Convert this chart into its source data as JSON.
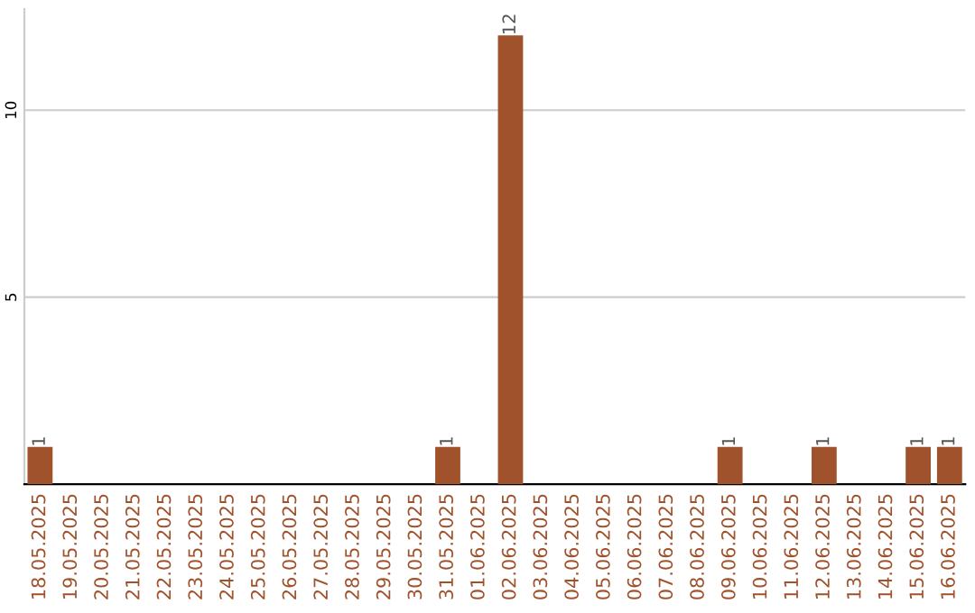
{
  "chart_data": {
    "type": "bar",
    "categories": [
      "18.05.2025",
      "19.05.2025",
      "20.05.2025",
      "21.05.2025",
      "22.05.2025",
      "23.05.2025",
      "24.05.2025",
      "25.05.2025",
      "26.05.2025",
      "27.05.2025",
      "28.05.2025",
      "29.05.2025",
      "30.05.2025",
      "31.05.2025",
      "01.06.2025",
      "02.06.2025",
      "03.06.2025",
      "04.06.2025",
      "05.06.2025",
      "06.06.2025",
      "07.06.2025",
      "08.06.2025",
      "09.06.2025",
      "10.06.2025",
      "11.06.2025",
      "12.06.2025",
      "13.06.2025",
      "14.06.2025",
      "15.06.2025",
      "16.06.2025"
    ],
    "values": [
      1,
      0,
      0,
      0,
      0,
      0,
      0,
      0,
      0,
      0,
      0,
      0,
      0,
      1,
      0,
      12,
      0,
      0,
      0,
      0,
      0,
      0,
      1,
      0,
      0,
      1,
      0,
      0,
      1,
      1
    ],
    "color": "#a0522d",
    "value_labels": [
      "1",
      null,
      null,
      null,
      null,
      null,
      null,
      null,
      null,
      null,
      null,
      null,
      null,
      "1",
      null,
      "12",
      null,
      null,
      null,
      null,
      null,
      null,
      "1",
      null,
      null,
      "1",
      null,
      null,
      "1",
      "1"
    ],
    "ylim": [
      0,
      12.7
    ],
    "yticks": [
      5,
      10
    ],
    "grid": "y"
  }
}
